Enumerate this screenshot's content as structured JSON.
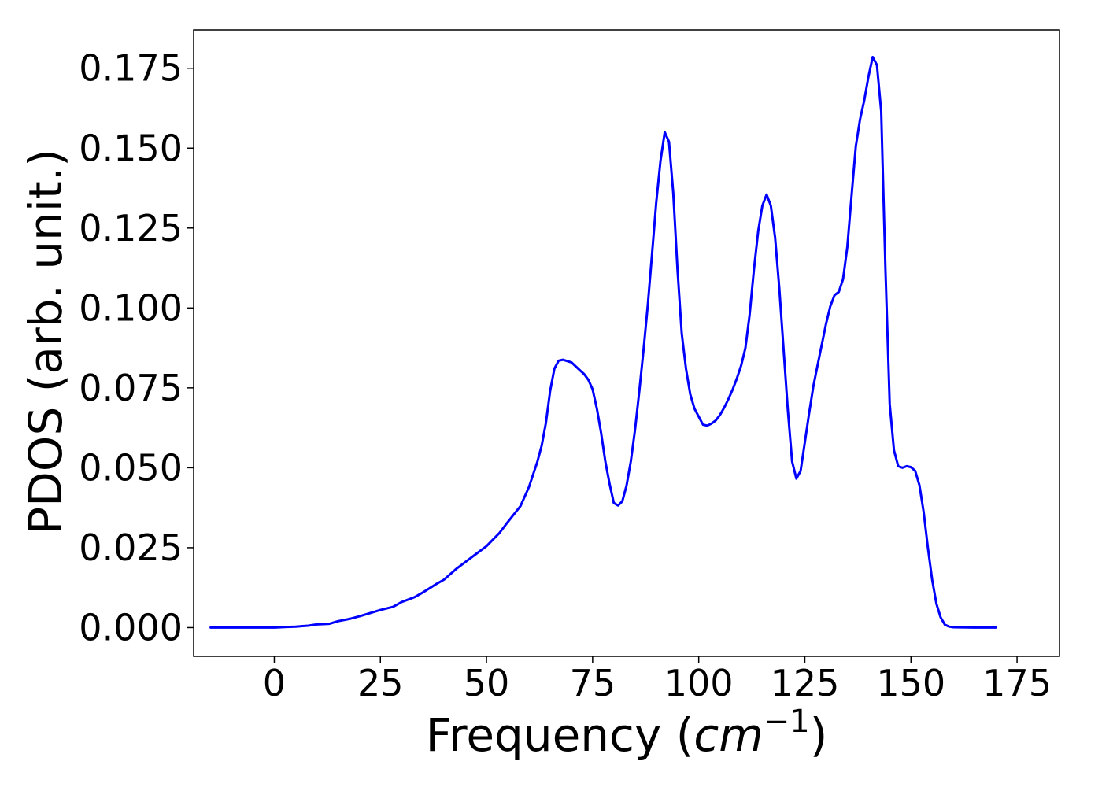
{
  "chart_data": {
    "type": "line",
    "title": "",
    "xlabel": "Frequency",
    "xlabel_unit": "cm",
    "xlabel_unit_exponent": "−1",
    "ylabel": "PDOS (arb. unit.)",
    "xlim": [
      -19,
      185
    ],
    "ylim": [
      -0.009,
      0.187
    ],
    "x_ticks": [
      0,
      25,
      50,
      75,
      100,
      125,
      150,
      175
    ],
    "y_ticks": [
      0.0,
      0.025,
      0.05,
      0.075,
      0.1,
      0.125,
      0.15,
      0.175
    ],
    "y_tick_labels": [
      "0.000",
      "0.025",
      "0.050",
      "0.075",
      "0.100",
      "0.125",
      "0.150",
      "0.175"
    ],
    "grid": false,
    "legend": "none",
    "line_color": "#0000ff",
    "series": [
      {
        "x": [
          -15,
          0,
          3,
          5,
          8,
          10,
          13,
          15,
          18,
          20,
          25,
          28,
          30,
          33,
          35,
          38,
          40,
          43,
          45,
          48,
          50,
          53,
          55,
          58,
          60,
          62,
          63,
          64,
          65,
          66,
          67,
          68,
          70,
          72,
          73,
          74,
          75,
          76,
          77,
          78,
          79,
          80,
          81,
          82,
          83,
          84,
          85,
          86,
          87,
          88,
          89,
          90,
          91,
          92,
          93,
          94,
          95,
          96,
          97,
          98,
          99,
          100,
          101,
          102,
          103,
          104,
          105,
          106,
          107,
          108,
          109,
          110,
          111,
          112,
          113,
          114,
          115,
          116,
          117,
          118,
          119,
          120,
          121,
          122,
          123,
          124,
          125,
          126,
          127,
          128,
          129,
          130,
          131,
          132,
          133,
          134,
          135,
          136,
          137,
          138,
          139,
          140,
          141,
          142,
          143,
          144,
          145,
          146,
          147,
          148,
          149,
          150,
          151,
          152,
          153,
          154,
          155,
          156,
          157,
          158,
          159,
          160,
          165,
          170
        ],
        "y": [
          0,
          0,
          0.0002,
          0.0003,
          0.0006,
          0.001,
          0.0012,
          0.002,
          0.0028,
          0.0035,
          0.0055,
          0.0065,
          0.008,
          0.0095,
          0.011,
          0.0135,
          0.015,
          0.0185,
          0.0205,
          0.0235,
          0.0255,
          0.0295,
          0.033,
          0.038,
          0.044,
          0.052,
          0.057,
          0.064,
          0.074,
          0.081,
          0.0835,
          0.0838,
          0.083,
          0.0805,
          0.0793,
          0.0775,
          0.0745,
          0.0685,
          0.061,
          0.052,
          0.045,
          0.039,
          0.0382,
          0.0395,
          0.0445,
          0.052,
          0.062,
          0.074,
          0.087,
          0.101,
          0.117,
          0.133,
          0.146,
          0.155,
          0.152,
          0.136,
          0.112,
          0.092,
          0.081,
          0.073,
          0.0685,
          0.066,
          0.0635,
          0.0632,
          0.0638,
          0.0648,
          0.0665,
          0.0688,
          0.0715,
          0.0745,
          0.078,
          0.082,
          0.0875,
          0.098,
          0.112,
          0.124,
          0.132,
          0.1355,
          0.132,
          0.122,
          0.106,
          0.087,
          0.068,
          0.052,
          0.0466,
          0.049,
          0.058,
          0.067,
          0.0755,
          0.082,
          0.0885,
          0.095,
          0.1005,
          0.104,
          0.105,
          0.109,
          0.119,
          0.135,
          0.1505,
          0.159,
          0.165,
          0.1725,
          0.1785,
          0.176,
          0.1615,
          0.112,
          0.07,
          0.0555,
          0.0505,
          0.05,
          0.0505,
          0.0502,
          0.049,
          0.0445,
          0.036,
          0.025,
          0.015,
          0.0075,
          0.0032,
          0.0009,
          0.0003,
          0.0001,
          0,
          0
        ]
      }
    ]
  }
}
